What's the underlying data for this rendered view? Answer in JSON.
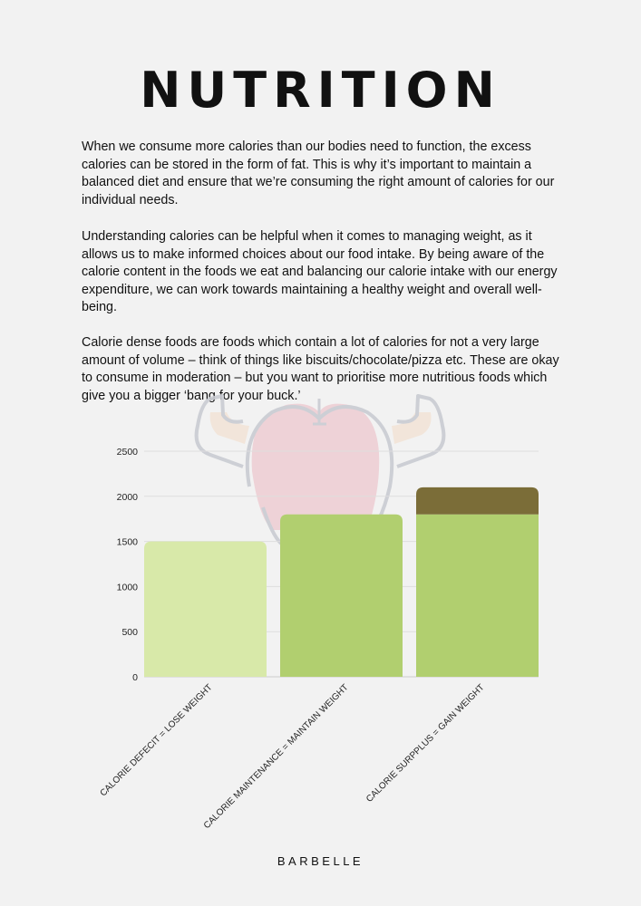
{
  "title": "NUTRITION",
  "paragraphs": [
    "When we consume more calories than our bodies need to function, the excess calories can be stored in the form of fat. This is why it’s important to maintain a balanced diet and ensure that we’re consuming the right amount of calories for our individual needs.",
    "Understanding calories can be helpful when it comes to managing weight, as it allows us to make informed choices about our food intake. By being aware of the calorie content in the foods we eat and balancing our calorie intake with our energy expenditure, we can work towards maintaining a healthy weight and overall well-being.",
    "Calorie dense foods are foods which contain a lot of calories for not a very large amount of volume – think of things like biscuits/chocolate/pizza etc. These are okay to consume in moderation – but you want to prioritise more nutritious foods which give you a bigger ‘bang for your buck.’"
  ],
  "footer": "BARBELLE",
  "illustration": "flexing-apple-icon",
  "chart_data": {
    "type": "bar",
    "stacked": true,
    "categories": [
      "CALORIE DEFECIT = LOSE WEIGHT",
      "CALORIE MAINTENANCE = MAINTAIN WEIGHT",
      "CALORIE SURPPLUS = GAIN WEIGHT"
    ],
    "series": [
      {
        "values": [
          1500,
          1800,
          1800
        ],
        "colors": [
          "#d8e9a9",
          "#b1cf6f",
          "#b1cf6f"
        ]
      },
      {
        "values": [
          0,
          0,
          300
        ],
        "colors": [
          "#7b6d38",
          "#7b6d38",
          "#7b6d38"
        ]
      }
    ],
    "yticks": [
      0,
      500,
      1000,
      1500,
      2000,
      2500
    ],
    "ylim": [
      0,
      2500
    ],
    "grid": true,
    "legend": "none"
  }
}
